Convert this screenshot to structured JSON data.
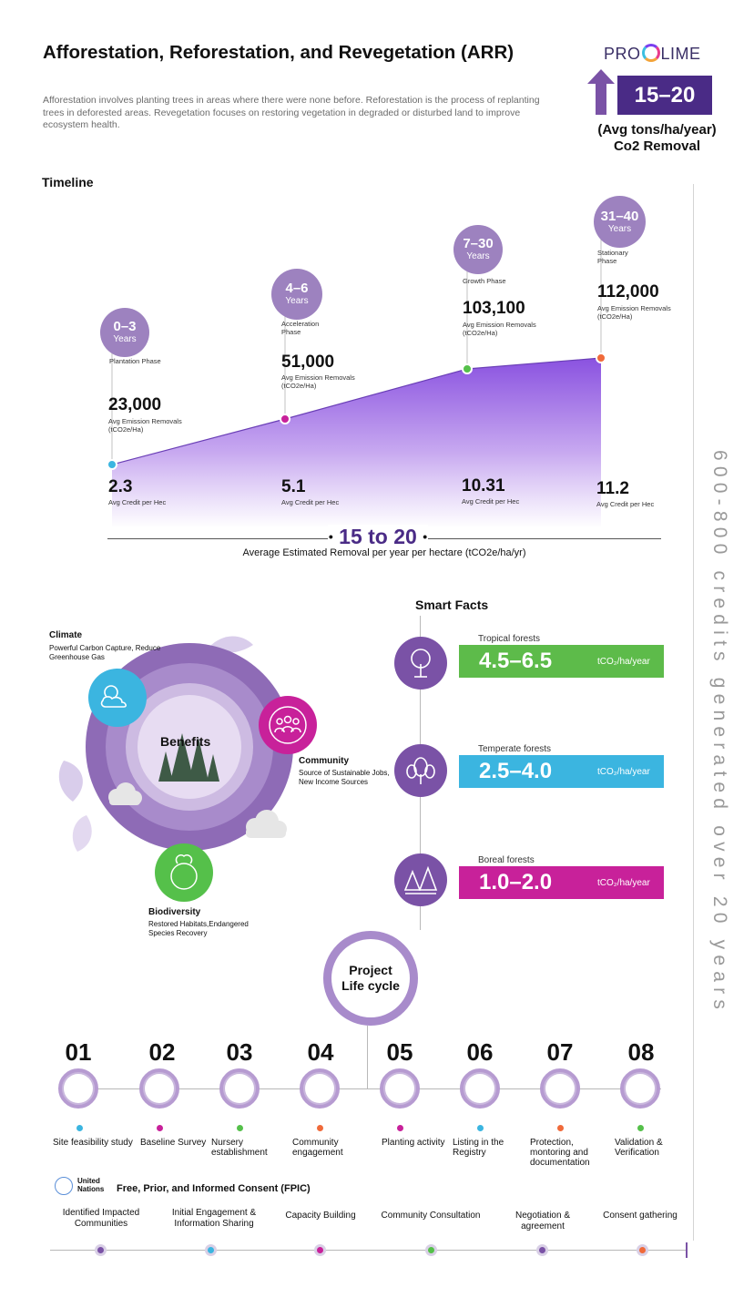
{
  "header": {
    "title": "Afforestation, Reforestation, and Revegetation (ARR)",
    "description": "Afforestation involves planting trees in areas where there were none before. Reforestation is the process of replanting trees in deforested areas. Revegetation focuses on restoring vegetation in degraded or disturbed land to improve ecosystem health.",
    "brand_pre": "PRO",
    "brand_post": "LIME",
    "badge_value": "15–20",
    "badge_caption_1": "(Avg tons/ha/year)",
    "badge_caption_2": "Co2 Removal"
  },
  "timeline": {
    "label": "Timeline",
    "phases": [
      {
        "years": "0–3",
        "years_word": "Years",
        "phase": "Plantation Phase",
        "value": "23,000",
        "value_caption": "Avg Emission Removals (tCO2e/Ha)",
        "credit": "2.3",
        "credit_caption": "Avg Credit per Hec"
      },
      {
        "years": "4–6",
        "years_word": "Years",
        "phase": "Acceleration Phase",
        "value": "51,000",
        "value_caption": "Avg Emission Removals (tCO2e/Ha)",
        "credit": "5.1",
        "credit_caption": "Avg Credit per Hec"
      },
      {
        "years": "7–30",
        "years_word": "Years",
        "phase": "Growth Phase",
        "value": "103,100",
        "value_caption": "Avg Emission Removals (tCO2e/Ha)",
        "credit": "10.31",
        "credit_caption": "Avg Credit per Hec"
      },
      {
        "years": "31–40",
        "years_word": "Years",
        "phase": "Stationary Phase",
        "value": "112,000",
        "value_caption": "Avg Emission Removals (tCO2e/Ha)",
        "credit": "11.2",
        "credit_caption": "Avg Credit per Hec"
      }
    ],
    "removal_range": "15 to 20",
    "removal_caption": "Average Estimated Removal per year per hectare (tCO2e/ha/yr)",
    "point_colors": [
      "#3bb5e0",
      "#c8219a",
      "#55c04a",
      "#f06a3a"
    ]
  },
  "vertical_note": "600-800 credits generated over 20 years",
  "benefits": {
    "center": "Benefits",
    "items": [
      {
        "title": "Climate",
        "text": "Powerful Carbon Capture, Reduce Greenhouse Gas",
        "icon": "sun-cloud-icon",
        "color": "#3bb5e0"
      },
      {
        "title": "Community",
        "text": "Source of Sustainable Jobs, New Income Sources",
        "icon": "people-icon",
        "color": "#c8219a"
      },
      {
        "title": "Biodiversity",
        "text": "Restored Habitats,Endangered Species Recovery",
        "icon": "globe-tree-icon",
        "color": "#55c04a"
      }
    ]
  },
  "smart_facts": {
    "label": "Smart Facts",
    "items": [
      {
        "name": "Tropical forests",
        "value": "4.5–6.5",
        "unit": "tCO₂/ha/year",
        "color": "#5dbb4a",
        "icon": "tropical-tree-icon"
      },
      {
        "name": "Temperate forests",
        "value": "2.5–4.0",
        "unit": "tCO₂/ha/year",
        "color": "#3bb5e0",
        "icon": "temperate-tree-icon"
      },
      {
        "name": "Boreal forests",
        "value": "1.0–2.0",
        "unit": "tCO₂/ha/year",
        "color": "#c8219a",
        "icon": "boreal-tree-icon"
      }
    ]
  },
  "lifecycle": {
    "title_1": "Project",
    "title_2": "Life cycle",
    "steps": [
      {
        "num": "01",
        "label": "Site feasibility study",
        "color": "#3bb5e0",
        "icon": "magnifier-chart-icon"
      },
      {
        "num": "02",
        "label": "Baseline Survey",
        "color": "#c8219a",
        "icon": "checklist-icon"
      },
      {
        "num": "03",
        "label": "Nursery establishment",
        "color": "#55c04a",
        "icon": "greenhouse-icon"
      },
      {
        "num": "04",
        "label": "Community engagement",
        "color": "#f06a3a",
        "icon": "community-icon"
      },
      {
        "num": "05",
        "label": "Planting activity",
        "color": "#c8219a",
        "icon": "seedling-icon"
      },
      {
        "num": "06",
        "label": "Listing in the Registry",
        "color": "#3bb5e0",
        "icon": "clipboard-icon"
      },
      {
        "num": "07",
        "label": "Protection, montoring and documentation",
        "color": "#f06a3a",
        "icon": "eye-gear-icon"
      },
      {
        "num": "08",
        "label": "Validation & Verification",
        "color": "#55c04a",
        "icon": "check-badge-icon"
      }
    ]
  },
  "fpic": {
    "org": "United Nations",
    "title": "Free, Prior, and Informed Consent (FPIC)",
    "items": [
      {
        "label": "Identified Impacted Communities",
        "color": "#7a52a6"
      },
      {
        "label": "Initial Engagement & Information Sharing",
        "color": "#3bb5e0"
      },
      {
        "label": "Capacity Building",
        "color": "#c8219a"
      },
      {
        "label": "Community Consultation",
        "color": "#55c04a"
      },
      {
        "label": "Negotiation & agreement",
        "color": "#7a52a6"
      },
      {
        "label": "Consent gathering",
        "color": "#f06a3a"
      }
    ]
  }
}
